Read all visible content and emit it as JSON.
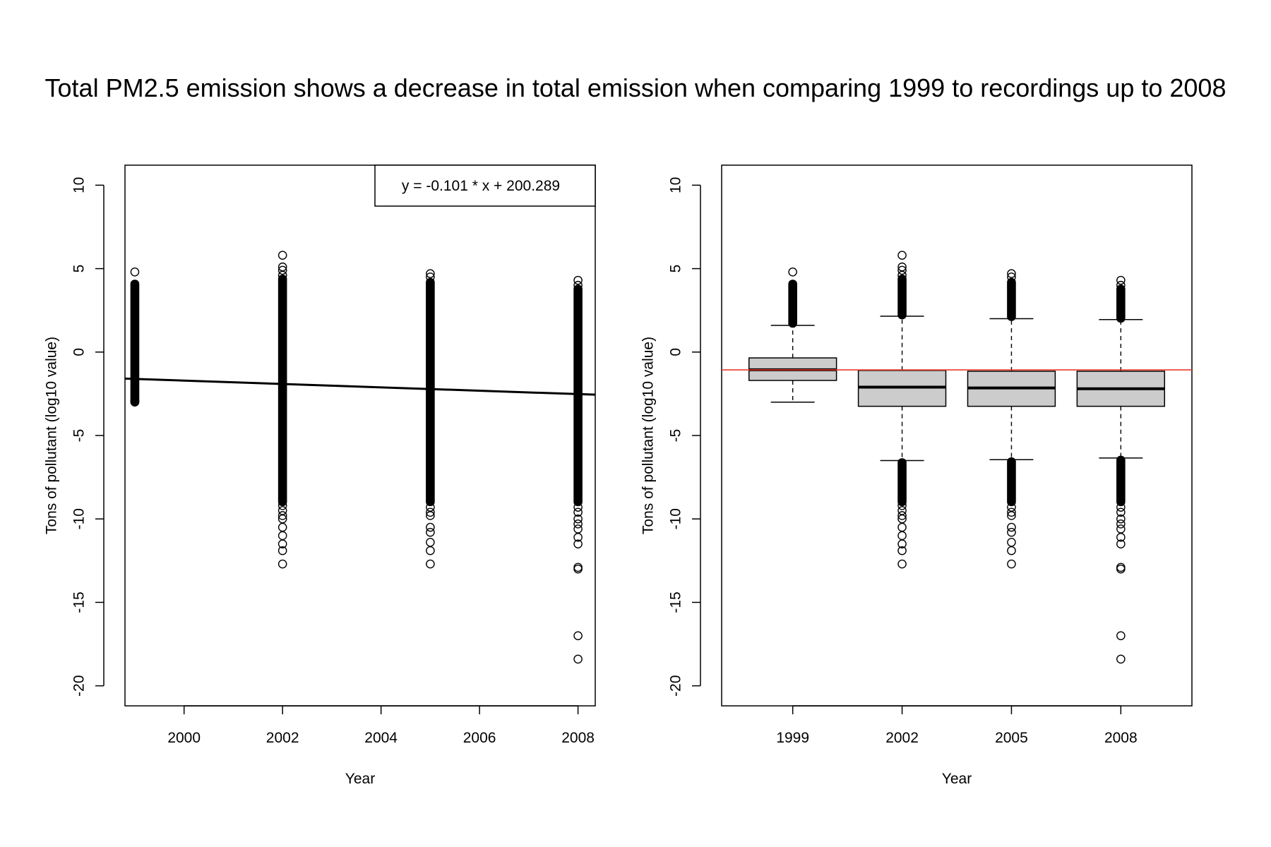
{
  "title": "Total PM2.5 emission shows a decrease in total emission when comparing 1999 to recordings up to 2008",
  "colors": {
    "ink": "#000000",
    "box_fill": "#cccccc",
    "ref_line": "#e8392b"
  },
  "chart_data": [
    {
      "type": "scatter",
      "xlabel": "Year",
      "ylabel": "Tons of pollutant (log10 value)",
      "xlim": [
        1998.8,
        2008.35
      ],
      "ylim": [
        -21.2,
        11.2
      ],
      "xticks": [
        2000,
        2002,
        2004,
        2006,
        2008
      ],
      "yticks": [
        -20,
        -15,
        -10,
        -5,
        0,
        5,
        10
      ],
      "grid": false,
      "legend": {
        "position": "top-right",
        "text": "y = -0.101 * x + 200.289"
      },
      "regression": {
        "slope": -0.101,
        "intercept": 200.289
      },
      "series": [
        {
          "x": 1999,
          "range": [
            -3.0,
            4.1
          ],
          "outliers": [
            4.8,
            -2.9,
            -3.0
          ]
        },
        {
          "x": 2002,
          "range": [
            -9.0,
            4.4
          ],
          "outliers": [
            5.8,
            5.1,
            4.9,
            4.6,
            -9.2,
            -9.5,
            -9.8,
            -10.0,
            -10.5,
            -11.0,
            -11.5,
            -11.9,
            -12.7
          ]
        },
        {
          "x": 2005,
          "range": [
            -9.0,
            4.2
          ],
          "outliers": [
            4.7,
            4.5,
            -9.3,
            -9.6,
            -9.8,
            -10.5,
            -10.8,
            -11.4,
            -11.9,
            -12.7
          ]
        },
        {
          "x": 2008,
          "range": [
            -9.0,
            3.8
          ],
          "outliers": [
            4.3,
            4.0,
            -9.3,
            -9.6,
            -10.0,
            -10.3,
            -10.6,
            -11.1,
            -11.5,
            -12.9,
            -13.0,
            -17.0,
            -18.4
          ]
        }
      ]
    },
    {
      "type": "box",
      "xlabel": "Year",
      "ylabel": "Tons of pollutant (log10 value)",
      "ylim": [
        -21.2,
        11.2
      ],
      "yticks": [
        -20,
        -15,
        -10,
        -5,
        0,
        5,
        10
      ],
      "grid": false,
      "reference_line": -1.07,
      "categories": [
        "1999",
        "2002",
        "2005",
        "2008"
      ],
      "boxes": [
        {
          "lower_whisker": -3.0,
          "q1": -1.7,
          "median": -1.06,
          "q3": -0.35,
          "upper_whisker": 1.6,
          "outliers_dense": [
            [
              1.7,
              4.1
            ]
          ],
          "outliers": [
            4.8
          ]
        },
        {
          "lower_whisker": -6.5,
          "q1": -3.25,
          "median": -2.1,
          "q3": -1.1,
          "upper_whisker": 2.15,
          "outliers_dense": [
            [
              2.2,
              4.4
            ],
            [
              -9.0,
              -6.6
            ]
          ],
          "outliers": [
            5.8,
            5.1,
            4.9,
            4.6,
            -9.2,
            -9.5,
            -9.8,
            -10.0,
            -10.5,
            -11.0,
            -11.5,
            -11.9,
            -12.7
          ]
        },
        {
          "lower_whisker": -6.45,
          "q1": -3.25,
          "median": -2.15,
          "q3": -1.15,
          "upper_whisker": 2.0,
          "outliers_dense": [
            [
              2.1,
              4.2
            ],
            [
              -9.0,
              -6.55
            ]
          ],
          "outliers": [
            4.7,
            4.5,
            -9.3,
            -9.6,
            -9.8,
            -10.5,
            -10.8,
            -11.4,
            -11.9,
            -12.7
          ]
        },
        {
          "lower_whisker": -6.35,
          "q1": -3.25,
          "median": -2.2,
          "q3": -1.15,
          "upper_whisker": 1.95,
          "outliers_dense": [
            [
              2.0,
              3.8
            ],
            [
              -9.0,
              -6.45
            ]
          ],
          "outliers": [
            4.3,
            4.0,
            -9.3,
            -9.6,
            -10.0,
            -10.3,
            -10.6,
            -11.1,
            -11.5,
            -12.9,
            -13.0,
            -17.0,
            -18.4
          ]
        }
      ]
    }
  ]
}
